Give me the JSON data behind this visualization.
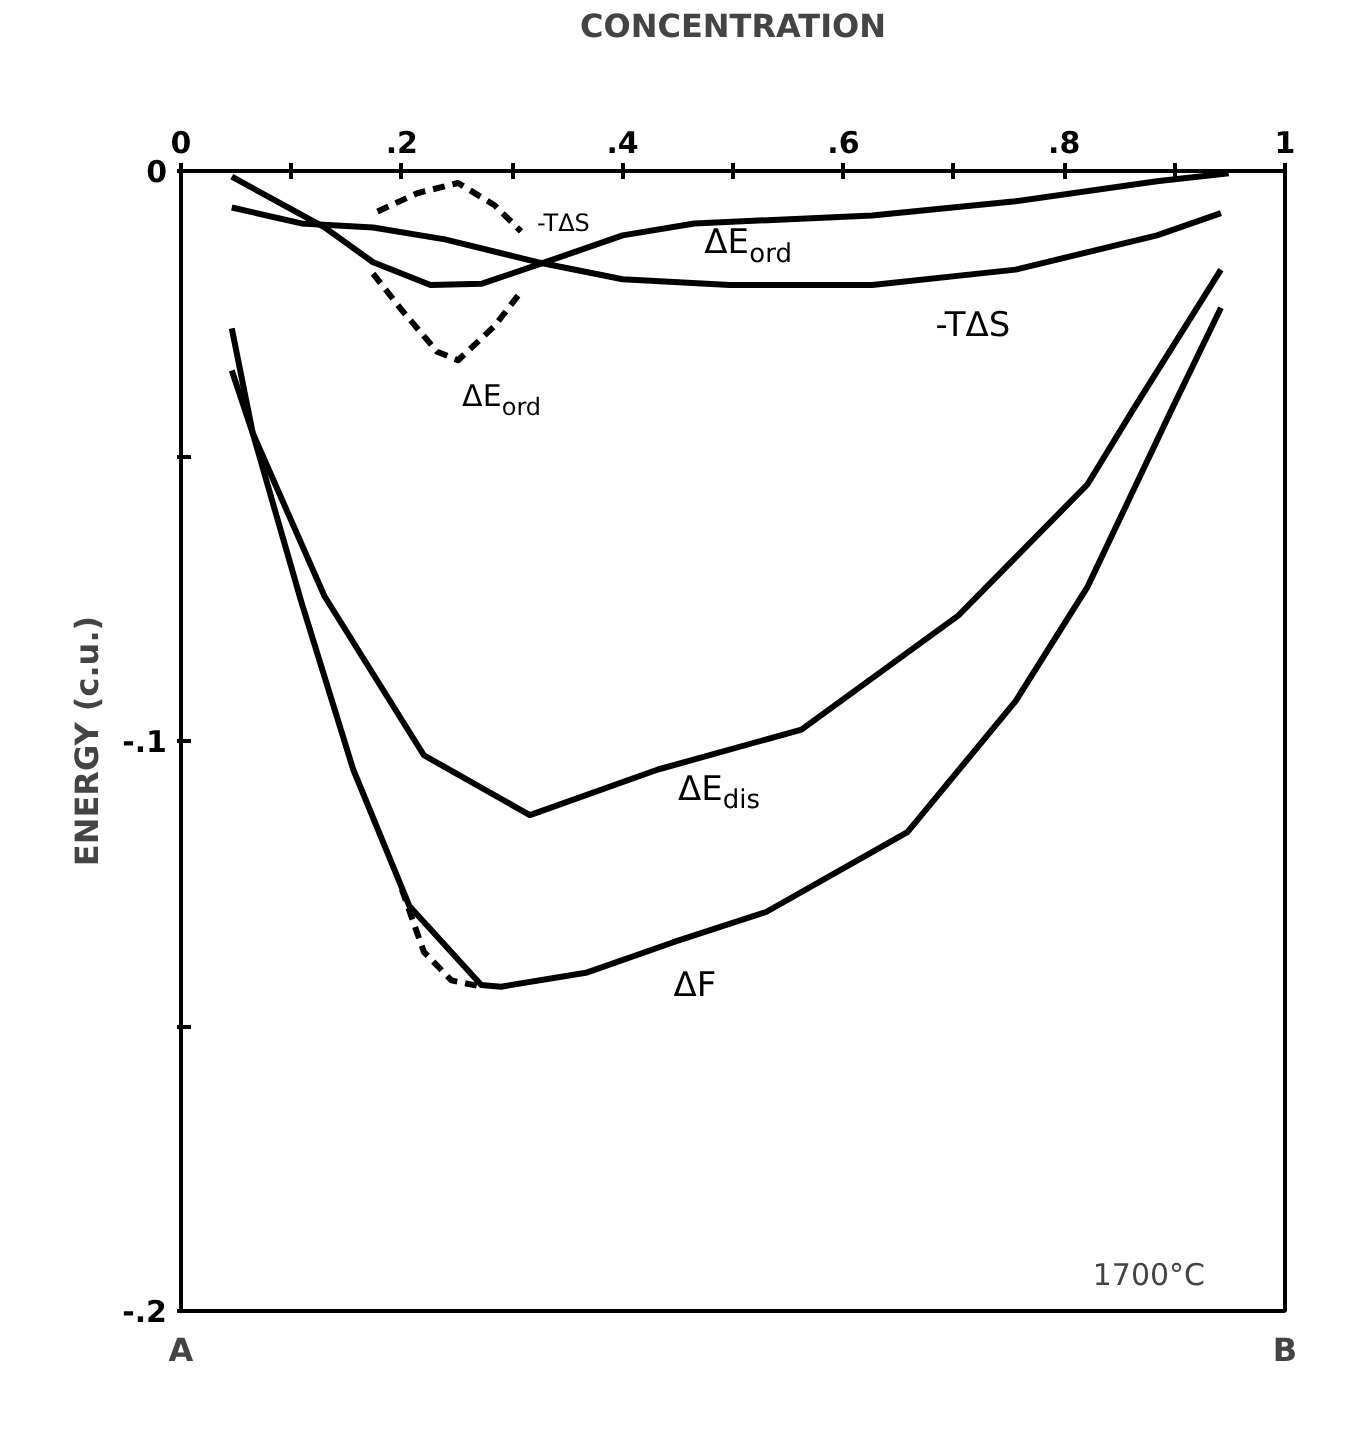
{
  "chart_data": {
    "type": "line",
    "xlabel": "CONCENTRATION",
    "ylabel": "ENERGY (c.u.)",
    "xlim": [
      0,
      1
    ],
    "xticks": [
      0,
      {
        "value": 0.1,
        "label": null
      },
      {
        "value": 0.2,
        "label": ".2"
      },
      {
        "value": 0.3,
        "label": null
      },
      {
        "value": 0.4,
        "label": ".4"
      },
      {
        "value": 0.5,
        "label": null
      },
      {
        "value": 0.6,
        "label": ".6"
      },
      {
        "value": 0.7,
        "label": null
      },
      {
        "value": 0.8,
        "label": ".8"
      },
      {
        "value": 0.9,
        "label": null
      },
      1
    ],
    "ylim": [
      -0.2,
      0
    ],
    "yticks": [
      0,
      {
        "value": -0.05,
        "label": null
      },
      {
        "value": -0.1,
        "label": "-.1"
      },
      {
        "value": -0.15,
        "label": null
      },
      {
        "value": -0.2,
        "label": "-.2"
      }
    ],
    "grid": false,
    "legend": false,
    "marker": "none",
    "series": [
      {
        "name": "ΔE$_{ord}$",
        "color": "#000000",
        "line_style": "solid",
        "x": [
          0.046,
          0.13,
          0.174,
          0.226,
          0.272,
          0.33,
          0.4,
          0.465,
          0.626,
          0.756,
          0.884,
          0.949
        ],
        "values": [
          -0.001,
          -0.0099,
          -0.016,
          -0.02,
          -0.0198,
          -0.016,
          -0.0113,
          -0.0092,
          -0.0078,
          -0.0053,
          -0.0018,
          -0.0004
        ]
      },
      {
        "name": "-TΔS",
        "color": "#000000",
        "line_style": "solid",
        "x": [
          0.046,
          0.109,
          0.174,
          0.239,
          0.323,
          0.4,
          0.497,
          0.626,
          0.756,
          0.884,
          0.942
        ],
        "values": [
          -0.0064,
          -0.0092,
          -0.0099,
          -0.012,
          -0.016,
          -0.019,
          -0.02,
          -0.02,
          -0.0173,
          -0.0113,
          -0.0074
        ]
      },
      {
        "name": "-TΔS",
        "color": "#000000",
        "line_style": "dashed",
        "x": [
          0.178,
          0.214,
          0.251,
          0.284,
          0.308
        ],
        "values": [
          -0.0071,
          -0.0039,
          -0.0021,
          -0.006,
          -0.0106
        ]
      },
      {
        "name": "ΔE$_{ord}$",
        "color": "#000000",
        "line_style": "dashed",
        "x": [
          0.174,
          0.2,
          0.232,
          0.251,
          0.284,
          0.308
        ],
        "values": [
          -0.018,
          -0.0244,
          -0.0317,
          -0.0332,
          -0.0272,
          -0.0212
        ]
      },
      {
        "name": "ΔE$_{dis}$",
        "color": "#000000",
        "line_style": "solid",
        "x": [
          0.046,
          0.065,
          0.13,
          0.22,
          0.316,
          0.432,
          0.562,
          0.704,
          0.821,
          0.862,
          0.942
        ],
        "values": [
          -0.0276,
          -0.046,
          -0.0746,
          -0.1025,
          -0.113,
          -0.105,
          -0.098,
          -0.078,
          -0.055,
          -0.042,
          -0.0173
        ]
      },
      {
        "name": "ΔF",
        "color": "#000000",
        "line_style": "solid",
        "x": [
          0.046,
          0.065,
          0.109,
          0.156,
          0.207,
          0.272,
          0.29,
          0.368,
          0.446,
          0.53,
          0.658,
          0.756,
          0.821,
          0.897,
          0.942
        ],
        "values": [
          -0.035,
          -0.046,
          -0.0756,
          -0.105,
          -0.129,
          -0.1428,
          -0.1431,
          -0.1406,
          -0.1353,
          -0.13,
          -0.116,
          -0.093,
          -0.073,
          -0.042,
          -0.024
        ]
      },
      {
        "color": "#000000",
        "line_style": "dashed",
        "x": [
          0.2,
          0.22,
          0.245,
          0.27
        ],
        "values": [
          -0.126,
          -0.137,
          -0.142,
          -0.143
        ]
      }
    ],
    "annotations": [
      "A",
      "B",
      "1700°C"
    ]
  }
}
